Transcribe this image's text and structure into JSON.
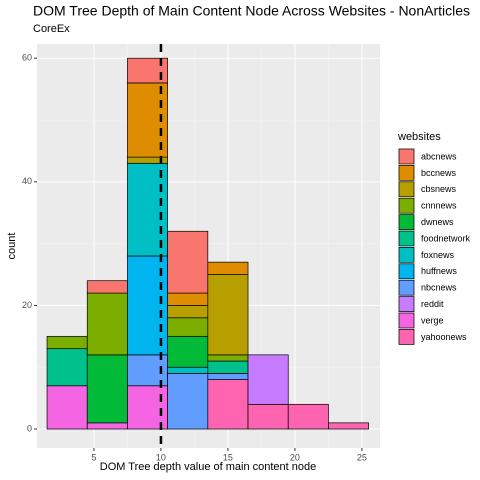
{
  "chart_data": {
    "type": "histogram",
    "title": "DOM Tree Depth of Main Content Node Across Websites - NonArticles",
    "subtitle": "CoreEx",
    "x_label": "DOM Tree depth value of main content node",
    "y_label": "count",
    "legend_title": "websites",
    "bins": [
      1.5,
      4.5,
      7.5,
      10.5,
      13.5,
      16.5,
      19.5,
      22.5,
      25.5
    ],
    "series": [
      {
        "name": "abcnews",
        "color": "#F8766D",
        "values": [
          0,
          2,
          4,
          10,
          0,
          0,
          0,
          0
        ]
      },
      {
        "name": "bccnews",
        "color": "#DE8C00",
        "values": [
          0,
          0,
          12,
          2,
          2,
          0,
          0,
          0
        ]
      },
      {
        "name": "cbsnews",
        "color": "#B79F00",
        "values": [
          0,
          0,
          1,
          2,
          13,
          0,
          0,
          0
        ]
      },
      {
        "name": "cnnnews",
        "color": "#7CAE00",
        "values": [
          2,
          10,
          0,
          3,
          1,
          0,
          0,
          0
        ]
      },
      {
        "name": "dwnews",
        "color": "#00BA38",
        "values": [
          0,
          11,
          0,
          5,
          0,
          0,
          0,
          0
        ]
      },
      {
        "name": "foodnetwork",
        "color": "#00C08B",
        "values": [
          6,
          0,
          0,
          0,
          2,
          0,
          0,
          0
        ]
      },
      {
        "name": "foxnews",
        "color": "#00BFC4",
        "values": [
          0,
          0,
          15,
          1,
          0,
          0,
          0,
          0
        ]
      },
      {
        "name": "huffnews",
        "color": "#00B4F0",
        "values": [
          0,
          0,
          16,
          0,
          0,
          0,
          0,
          0
        ]
      },
      {
        "name": "nbcnews",
        "color": "#619CFF",
        "values": [
          0,
          0,
          5,
          9,
          1,
          0,
          0,
          0
        ]
      },
      {
        "name": "reddit",
        "color": "#C77CFF",
        "values": [
          0,
          0,
          0,
          0,
          0,
          8,
          0,
          0
        ]
      },
      {
        "name": "verge",
        "color": "#F564E3",
        "values": [
          7,
          1,
          7,
          0,
          0,
          0,
          0,
          0
        ]
      },
      {
        "name": "yahoonews",
        "color": "#FF64B0",
        "values": [
          0,
          0,
          0,
          0,
          8,
          4,
          4,
          1
        ]
      }
    ],
    "vline": 10,
    "xlim": [
      0.75,
      26.35
    ],
    "ylim": [
      -3.07,
      62.3
    ],
    "xticks": [
      5,
      10,
      15,
      20,
      25
    ],
    "yticks": [
      0,
      20,
      40,
      60
    ],
    "grid": true
  }
}
